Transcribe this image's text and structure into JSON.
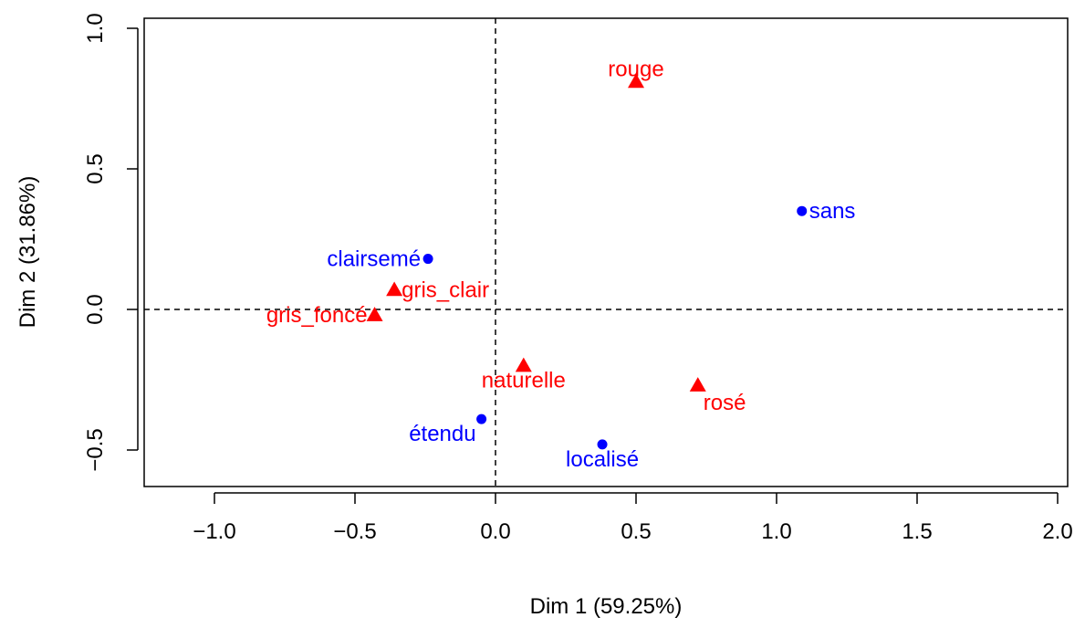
{
  "chart_data": {
    "type": "scatter",
    "xlabel": "Dim 1 (59.25%)",
    "ylabel": "Dim 2 (31.86%)",
    "xlim": [
      -1.25,
      2.0
    ],
    "ylim": [
      -0.63,
      1.0
    ],
    "x_ticks": [
      -1.0,
      -0.5,
      0.0,
      0.5,
      1.0,
      1.5,
      2.0
    ],
    "x_tick_labels": [
      "−1.0",
      "−0.5",
      "0.0",
      "0.5",
      "1.0",
      "1.5",
      "2.0"
    ],
    "y_ticks": [
      -0.5,
      0.0,
      0.5,
      1.0
    ],
    "y_tick_labels": [
      "−0.5",
      "0.0",
      "0.5",
      "1.0"
    ],
    "reference_lines": {
      "x": 0.0,
      "y": 0.0,
      "style": "dashed"
    },
    "grid": false,
    "series": [
      {
        "marker": "circle",
        "color": "#0000ff",
        "points": [
          {
            "label": "sans",
            "x": 1.09,
            "y": 0.35,
            "label_pos": "right"
          },
          {
            "label": "clairsemé",
            "x": -0.24,
            "y": 0.18,
            "label_pos": "left"
          },
          {
            "label": "étendu",
            "x": -0.05,
            "y": -0.39,
            "label_pos": "below-left"
          },
          {
            "label": "localisé",
            "x": 0.38,
            "y": -0.48,
            "label_pos": "below"
          }
        ]
      },
      {
        "marker": "triangle",
        "color": "#ff0000",
        "points": [
          {
            "label": "rouge",
            "x": 0.5,
            "y": 0.81,
            "label_pos": "above"
          },
          {
            "label": "gris_clair",
            "x": -0.36,
            "y": 0.07,
            "label_pos": "right"
          },
          {
            "label": "gris_foncé",
            "x": -0.43,
            "y": -0.02,
            "label_pos": "left"
          },
          {
            "label": "naturelle",
            "x": 0.1,
            "y": -0.2,
            "label_pos": "below"
          },
          {
            "label": "rosé",
            "x": 0.72,
            "y": -0.27,
            "label_pos": "below-right"
          }
        ]
      }
    ]
  }
}
